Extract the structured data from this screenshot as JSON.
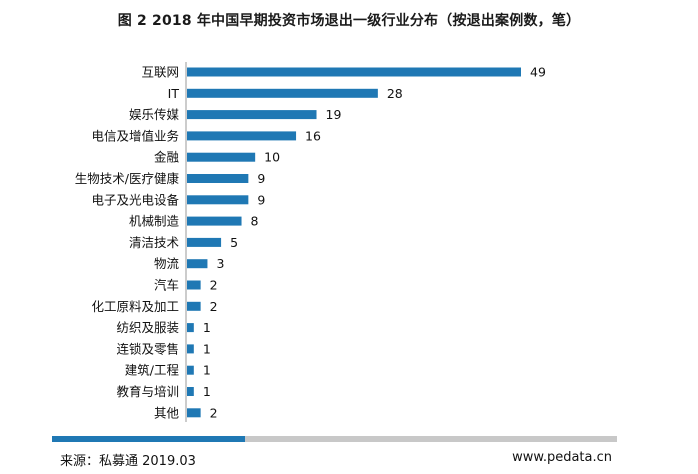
{
  "colors": {
    "bar": "#1f78b4",
    "footer_blue": "#1f78b4",
    "footer_gray": "#c8c8c8"
  },
  "chart_data": {
    "type": "bar",
    "orientation": "horizontal",
    "title": "图 2 2018 年中国早期投资市场退出一级行业分布（按退出案例数，笔）",
    "categories": [
      "互联网",
      "IT",
      "娱乐传媒",
      "电信及增值业务",
      "金融",
      "生物技术/医疗健康",
      "电子及光电设备",
      "机械制造",
      "清洁技术",
      "物流",
      "汽车",
      "化工原料及加工",
      "纺织及服装",
      "连锁及零售",
      "建筑/工程",
      "教育与培训",
      "其他"
    ],
    "values": [
      49,
      28,
      19,
      16,
      10,
      9,
      9,
      8,
      5,
      3,
      2,
      2,
      1,
      1,
      1,
      1,
      2
    ],
    "xlabel": "",
    "ylabel": "",
    "xlim": [
      0,
      49
    ],
    "grid": false,
    "legend": "none"
  },
  "footer": {
    "source": "来源：私募通 2019.03",
    "site": "www.pedata.cn"
  }
}
